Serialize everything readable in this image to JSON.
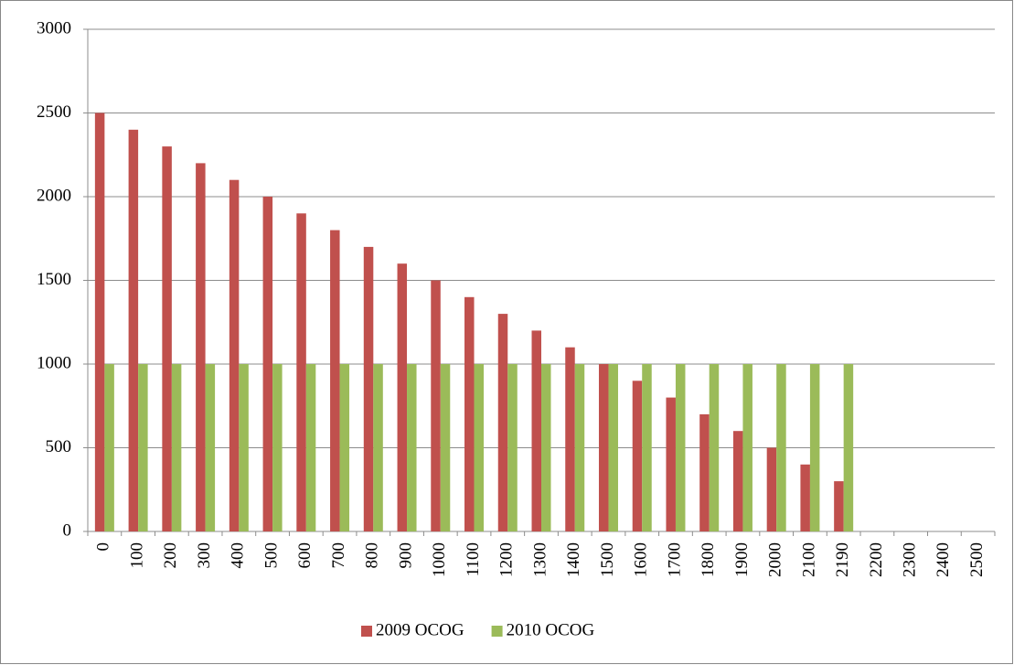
{
  "chart_data": {
    "type": "bar",
    "categories": [
      "0",
      "100",
      "200",
      "300",
      "400",
      "500",
      "600",
      "700",
      "800",
      "900",
      "1000",
      "1100",
      "1200",
      "1300",
      "1400",
      "1500",
      "1600",
      "1700",
      "1800",
      "1900",
      "2000",
      "2100",
      "2190",
      "2200",
      "2300",
      "2400",
      "2500"
    ],
    "series": [
      {
        "name": "2009 OCOG",
        "color": "#c0504d",
        "values": [
          2500,
          2400,
          2300,
          2200,
          2100,
          2000,
          1900,
          1800,
          1700,
          1600,
          1500,
          1400,
          1300,
          1200,
          1100,
          1000,
          900,
          800,
          700,
          600,
          500,
          400,
          300,
          null,
          null,
          null,
          null
        ]
      },
      {
        "name": "2010 OCOG",
        "color": "#9bbb59",
        "values": [
          1000,
          1000,
          1000,
          1000,
          1000,
          1000,
          1000,
          1000,
          1000,
          1000,
          1000,
          1000,
          1000,
          1000,
          1000,
          1000,
          1000,
          1000,
          1000,
          1000,
          1000,
          1000,
          1000,
          null,
          null,
          null,
          null
        ]
      }
    ],
    "ylim": [
      0,
      3000
    ],
    "yticks": [
      0,
      500,
      1000,
      1500,
      2000,
      2500,
      3000
    ],
    "grid": true,
    "legend": "bottom"
  }
}
